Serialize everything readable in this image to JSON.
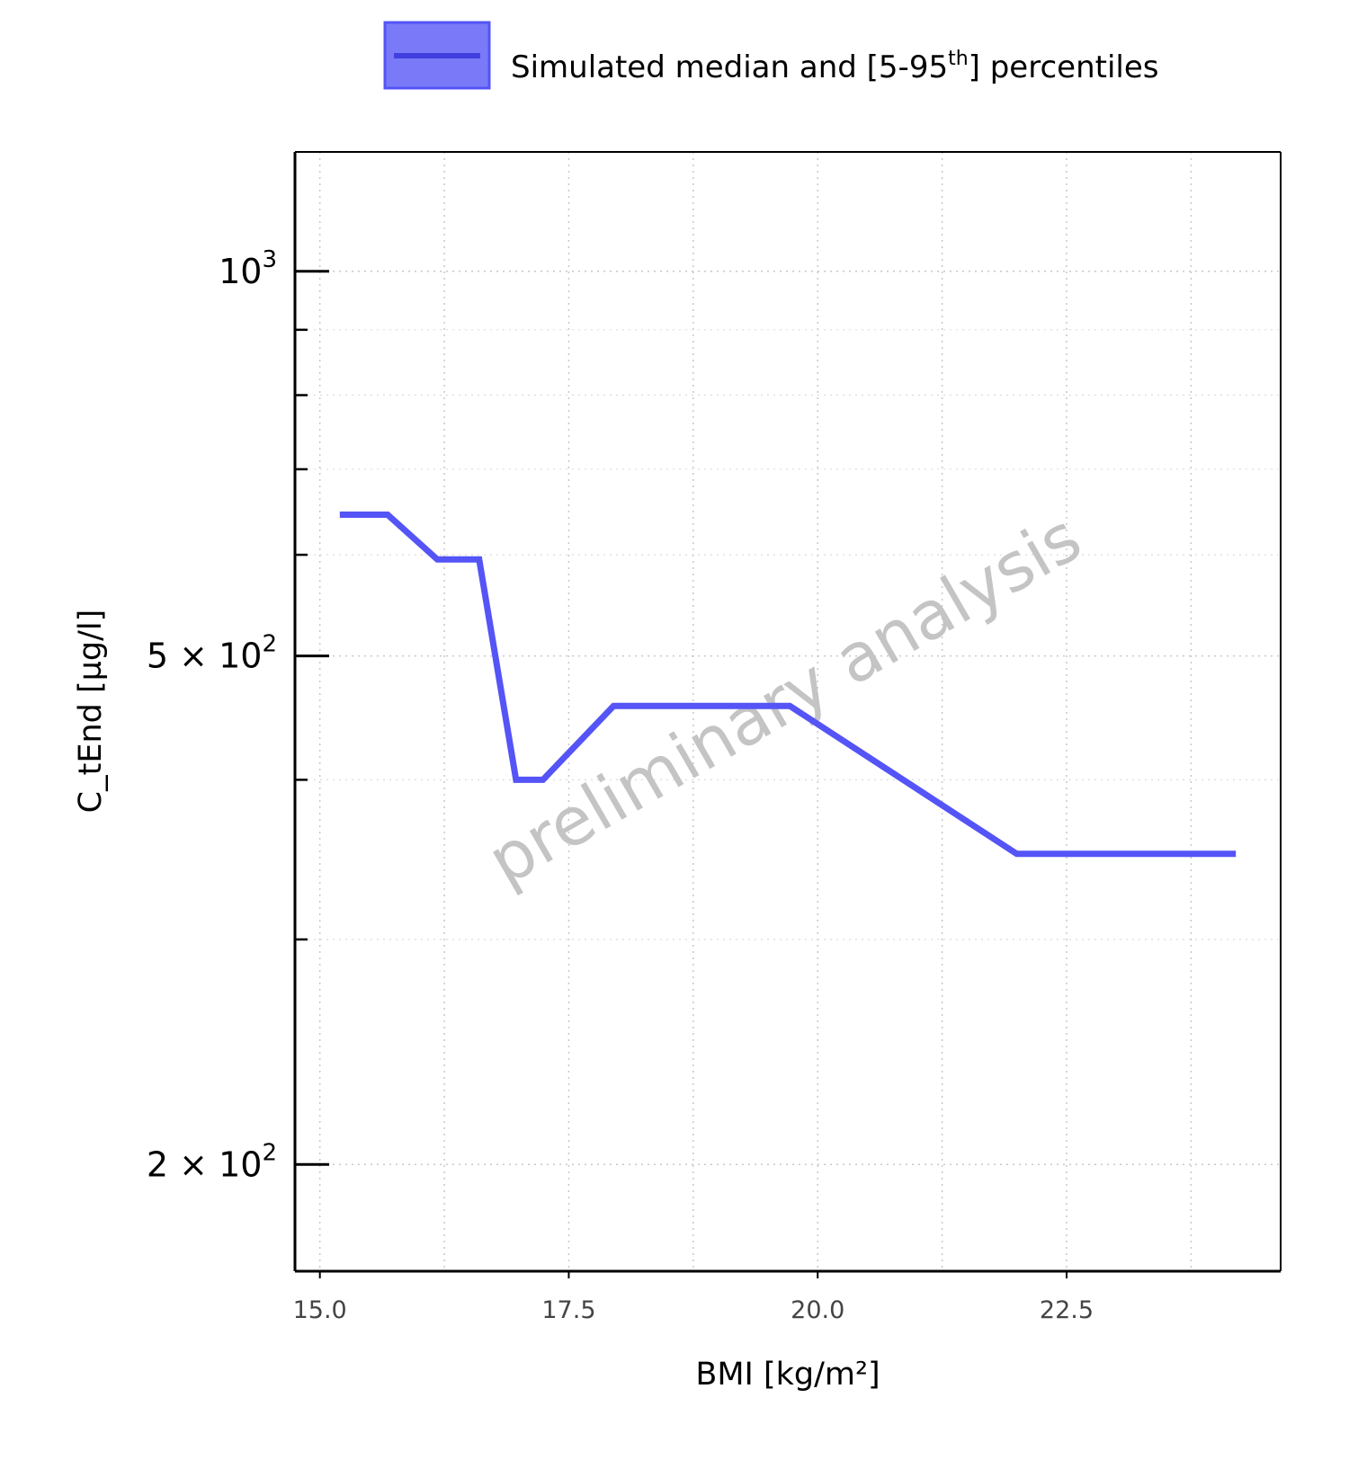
{
  "chart_data": {
    "type": "line",
    "title": "",
    "xlabel": "BMI [kg/m²]",
    "ylabel": "C_tEnd [µg/l]",
    "y_scale": "log",
    "xlim": [
      14.75,
      24.65
    ],
    "ylim": [
      165,
      1240
    ],
    "grid": true,
    "legend_position": "top-center",
    "watermark": "preliminary analysis",
    "x_ticks": [
      {
        "value": 15.0,
        "label": "15.0"
      },
      {
        "value": 17.5,
        "label": "17.5"
      },
      {
        "value": 20.0,
        "label": "20.0"
      },
      {
        "value": 22.5,
        "label": "22.5"
      }
    ],
    "y_ticks": [
      {
        "value": 1000,
        "base": "10",
        "exp": "3",
        "mult": ""
      },
      {
        "value": 500,
        "base": "10",
        "exp": "2",
        "mult": "5 × "
      },
      {
        "value": 200,
        "base": "10",
        "exp": "2",
        "mult": "2 × "
      }
    ],
    "y_minor_ticks": [
      900,
      800,
      700,
      600,
      400,
      300
    ],
    "series": [
      {
        "name": "Simulated median and [5-95th] percentiles",
        "legend_prefix": "Simulated median and [5-95",
        "legend_sup": "th",
        "legend_suffix": "] percentiles",
        "color": "#5454f7",
        "x": [
          15.2,
          15.68,
          16.18,
          16.6,
          16.97,
          17.24,
          17.95,
          19.72,
          22.0,
          24.2
        ],
        "y": [
          645,
          645,
          595,
          595,
          400,
          400,
          457,
          457,
          350,
          350
        ]
      }
    ]
  }
}
